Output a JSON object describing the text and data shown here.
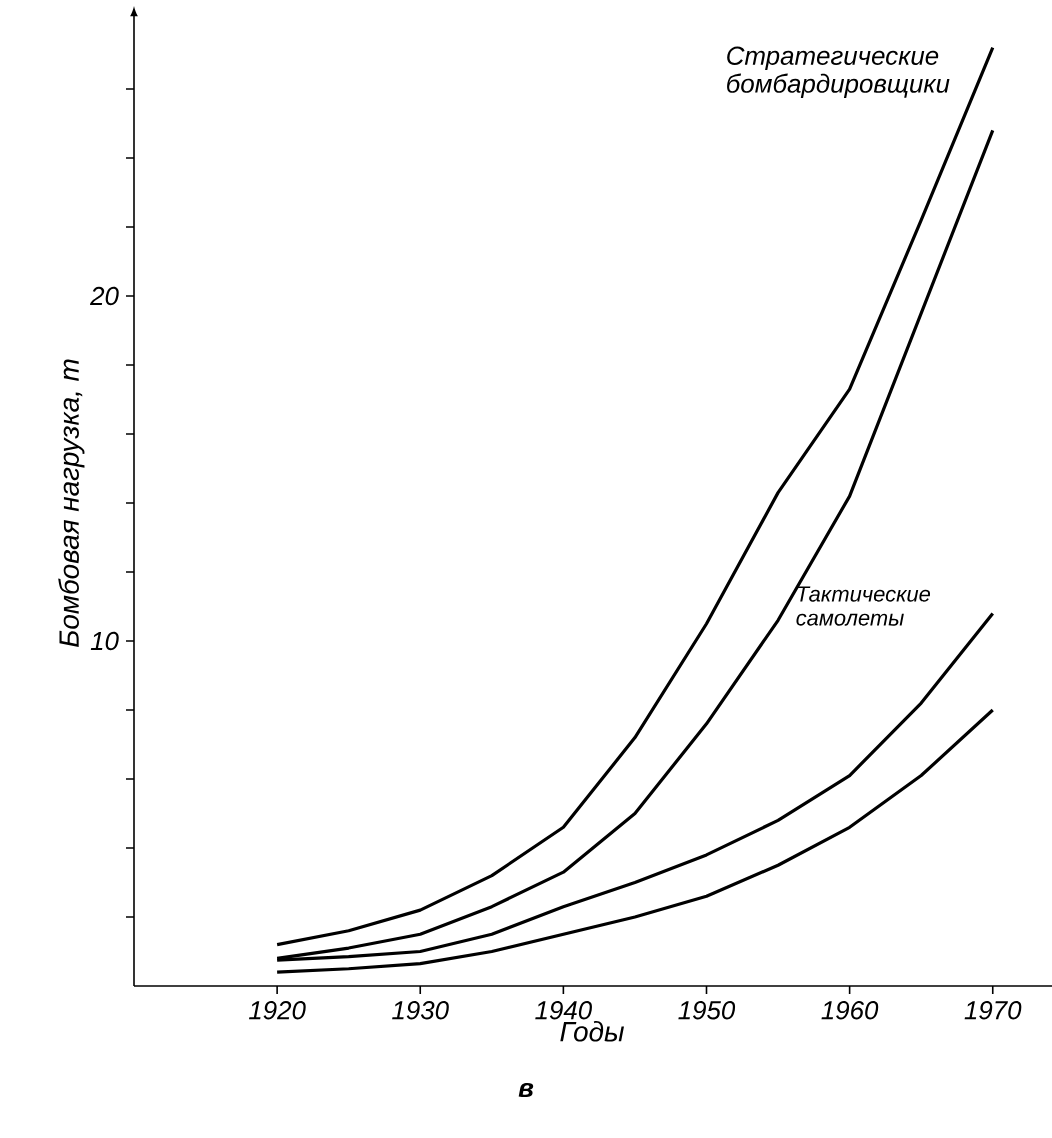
{
  "chart_data": {
    "type": "line",
    "xlabel": "Годы",
    "ylabel": "Бомбовая нагрузка, т",
    "x": [
      1920,
      1925,
      1930,
      1935,
      1940,
      1945,
      1950,
      1955,
      1960,
      1965,
      1970
    ],
    "xlim": [
      1910,
      1974
    ],
    "ylim": [
      0,
      28
    ],
    "xticks": [
      1920,
      1930,
      1940,
      1950,
      1960,
      1970
    ],
    "yticks": [
      {
        "value": 2,
        "label": null
      },
      {
        "value": 4,
        "label": null
      },
      {
        "value": 6,
        "label": null
      },
      {
        "value": 8,
        "label": null
      },
      10,
      {
        "value": 12,
        "label": null
      },
      {
        "value": 14,
        "label": null
      },
      {
        "value": 16,
        "label": null
      },
      {
        "value": 18,
        "label": null
      },
      20,
      {
        "value": 22,
        "label": null
      },
      {
        "value": 24,
        "label": null
      },
      {
        "value": 26,
        "label": null
      }
    ],
    "series": [
      {
        "name": "Стратегические бомбардировщики",
        "color": "#000000",
        "values": [
          1.2,
          1.6,
          2.2,
          3.2,
          4.6,
          7.2,
          10.5,
          14.3,
          17.3,
          22.2,
          27.2
        ]
      },
      {
        "color": "#000000",
        "values": [
          0.8,
          1.1,
          1.5,
          2.3,
          3.3,
          5.0,
          7.6,
          10.6,
          14.2,
          19.5,
          24.8
        ]
      },
      {
        "name": "Тактические самолеты",
        "color": "#000000",
        "values": [
          0.75,
          0.85,
          1.0,
          1.5,
          2.3,
          3.0,
          3.8,
          4.8,
          6.1,
          8.2,
          10.8
        ]
      },
      {
        "color": "#000000",
        "values": [
          0.4,
          0.5,
          0.65,
          1.0,
          1.5,
          2.0,
          2.6,
          3.5,
          4.6,
          6.1,
          8.0
        ]
      }
    ],
    "annotations": [
      "в"
    ],
    "grid": false
  }
}
